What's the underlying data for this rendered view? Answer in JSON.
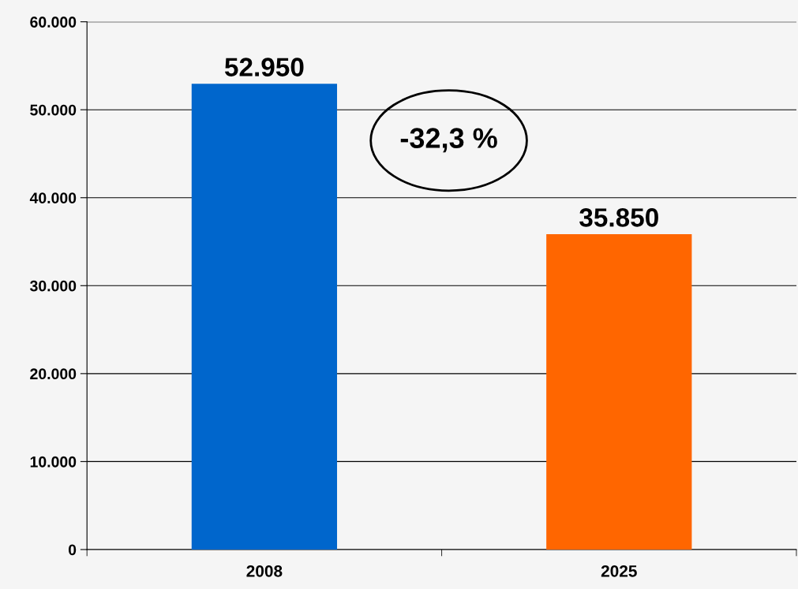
{
  "chart_data": {
    "type": "bar",
    "categories": [
      "2008",
      "2025"
    ],
    "values": [
      52950,
      35850
    ],
    "colors": [
      "#0066cc",
      "#ff6600"
    ],
    "value_labels": [
      "52.950",
      "35.850"
    ],
    "ylim": [
      0,
      60000
    ],
    "yticks": [
      0,
      {
        "value": 10000,
        "label": "10.000"
      },
      {
        "value": 20000,
        "label": "20.000"
      },
      {
        "value": 30000,
        "label": "30.000"
      },
      {
        "value": 40000,
        "label": "40.000"
      },
      {
        "value": 50000,
        "label": "50.000"
      },
      {
        "value": 60000,
        "label": "60.000"
      }
    ],
    "grid": "y",
    "annotations": [
      "-32,3 %"
    ]
  }
}
